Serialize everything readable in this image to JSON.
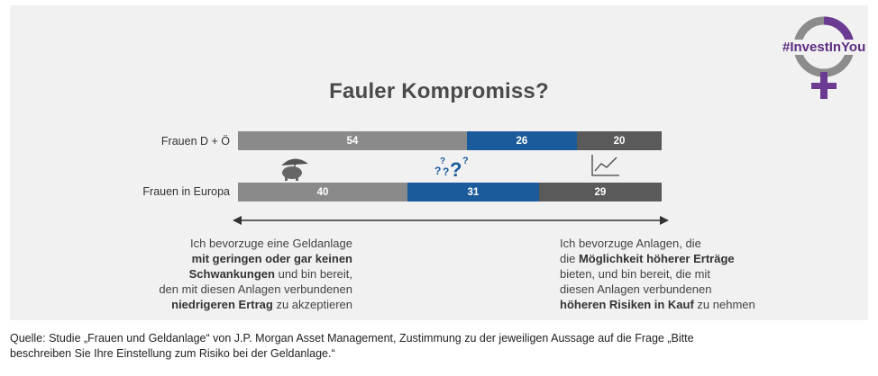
{
  "chart_data": {
    "type": "bar",
    "title": "Fauler Kompromiss?",
    "categories": [
      "Frauen D + Ö",
      "Frauen in Europa"
    ],
    "series": [
      {
        "values": [
          54,
          40
        ]
      },
      {
        "values": [
          26,
          31
        ]
      },
      {
        "values": [
          20,
          29
        ]
      }
    ],
    "stacked": true,
    "colors": [
      "#8a8a8a",
      "#1b5b9c",
      "#5a5a5a"
    ]
  },
  "icons": [
    "piggy-bank-umbrella-icon",
    "question-marks-icon",
    "line-chart-icon"
  ],
  "logo": "#InvestInYou",
  "left_text": {
    "l1": "Ich bevorzuge eine Geldanlage",
    "l2b": "mit geringen oder gar keinen",
    "l3b": "Schwankungen",
    "l3": " und bin bereit,",
    "l4": "den mit diesen Anlagen verbundenen",
    "l5b": "niedrigeren Ertrag",
    "l5": " zu akzeptieren"
  },
  "right_text": {
    "l1": "Ich bevorzuge Anlagen, die",
    "l2": "die ",
    "l2b": "Möglichkeit höherer Erträge",
    "l3": "bieten, und bin bereit, die mit",
    "l4": "diesen Anlagen verbundenen",
    "l5b": "höheren Risiken in Kauf",
    "l5": " zu nehmen"
  },
  "source": {
    "line1": "Quelle: Studie „Frauen und Geldanlage“ von J.P. Morgan Asset Management, Zustimmung zu der jeweiligen Aussage auf die Frage „Bitte",
    "line2": "beschreiben Sie Ihre Einstellung zum Risiko bei der Geldanlage.“"
  }
}
